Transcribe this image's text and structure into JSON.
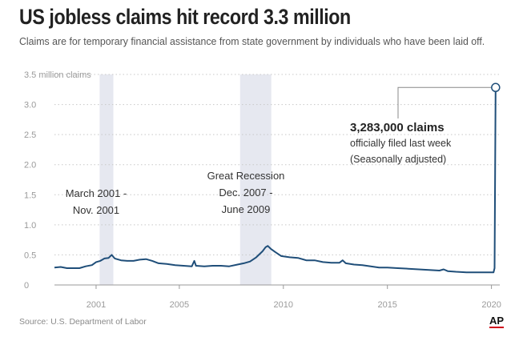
{
  "header": {
    "title": "US jobless claims hit record 3.3 million",
    "subtitle": "Claims are for temporary financial assistance from state government by individuals who have been laid off."
  },
  "footer": {
    "source": "Source: U.S. Department of Labor",
    "logo": "AP"
  },
  "colors": {
    "line": "#1f4e79",
    "shading": "#e6e8f0",
    "grid": "#c8c8c8",
    "axis_text": "#9a9a9a",
    "annotation_text": "#333333"
  },
  "chart_data": {
    "type": "line",
    "title": "US jobless claims hit record 3.3 million",
    "ylabel_unit": "million claims",
    "ylim": [
      0,
      3.5
    ],
    "xlim": [
      1999.0,
      2020.4
    ],
    "yticks": [
      {
        "value": 3.5,
        "label": "3.5 million claims"
      },
      {
        "value": 3.0,
        "label": "3.0"
      },
      {
        "value": 2.5,
        "label": "2.5"
      },
      {
        "value": 2.0,
        "label": "2.0"
      },
      {
        "value": 1.5,
        "label": "1.5"
      },
      {
        "value": 1.0,
        "label": "1.0"
      },
      {
        "value": 0.5,
        "label": "0.5"
      },
      {
        "value": 0,
        "label": "0"
      }
    ],
    "xticks": [
      {
        "value": 2001,
        "label": "2001"
      },
      {
        "value": 2005,
        "label": "2005"
      },
      {
        "value": 2010,
        "label": "2010"
      },
      {
        "value": 2015,
        "label": "2015"
      },
      {
        "value": 2020,
        "label": "2020"
      }
    ],
    "grid": true,
    "recessions": [
      {
        "start": 2001.17,
        "end": 2001.83,
        "label_lines": [
          "March 2001 -",
          "Nov. 2001"
        ]
      },
      {
        "start": 2007.92,
        "end": 2009.42,
        "label_lines": [
          "Great Recession",
          "Dec. 2007 -",
          "June 2009"
        ]
      }
    ],
    "series": [
      {
        "values_description_free": true,
        "x": [
          1999.0,
          1999.3,
          1999.6,
          1999.9,
          2000.2,
          2000.5,
          2000.8,
          2001.0,
          2001.2,
          2001.4,
          2001.6,
          2001.75,
          2001.9,
          2002.2,
          2002.5,
          2002.8,
          2003.1,
          2003.4,
          2003.7,
          2004.0,
          2004.4,
          2004.8,
          2005.2,
          2005.6,
          2005.72,
          2005.8,
          2006.2,
          2006.6,
          2007.0,
          2007.4,
          2007.8,
          2008.1,
          2008.4,
          2008.7,
          2009.0,
          2009.15,
          2009.25,
          2009.4,
          2009.6,
          2009.9,
          2010.3,
          2010.7,
          2011.1,
          2011.5,
          2011.9,
          2012.3,
          2012.7,
          2012.85,
          2013.0,
          2013.4,
          2013.8,
          2014.2,
          2014.6,
          2015.0,
          2015.5,
          2016.0,
          2016.5,
          2017.0,
          2017.5,
          2017.7,
          2017.9,
          2018.3,
          2018.8,
          2019.3,
          2019.8,
          2020.1,
          2020.15,
          2020.2
        ],
        "values": [
          0.29,
          0.3,
          0.28,
          0.28,
          0.28,
          0.31,
          0.33,
          0.38,
          0.4,
          0.44,
          0.45,
          0.5,
          0.44,
          0.41,
          0.4,
          0.4,
          0.42,
          0.43,
          0.4,
          0.36,
          0.35,
          0.33,
          0.32,
          0.31,
          0.4,
          0.32,
          0.31,
          0.32,
          0.32,
          0.31,
          0.34,
          0.36,
          0.39,
          0.46,
          0.56,
          0.63,
          0.65,
          0.6,
          0.55,
          0.48,
          0.46,
          0.45,
          0.41,
          0.41,
          0.38,
          0.37,
          0.37,
          0.41,
          0.36,
          0.34,
          0.33,
          0.31,
          0.29,
          0.29,
          0.28,
          0.27,
          0.26,
          0.25,
          0.24,
          0.26,
          0.23,
          0.22,
          0.21,
          0.21,
          0.21,
          0.21,
          0.28,
          3.283
        ]
      }
    ],
    "callout": {
      "x": 2020.2,
      "value": 3.283,
      "headline": "3,283,000 claims",
      "lines": [
        "officially filed last week",
        "(Seasonally adjusted)"
      ]
    }
  }
}
